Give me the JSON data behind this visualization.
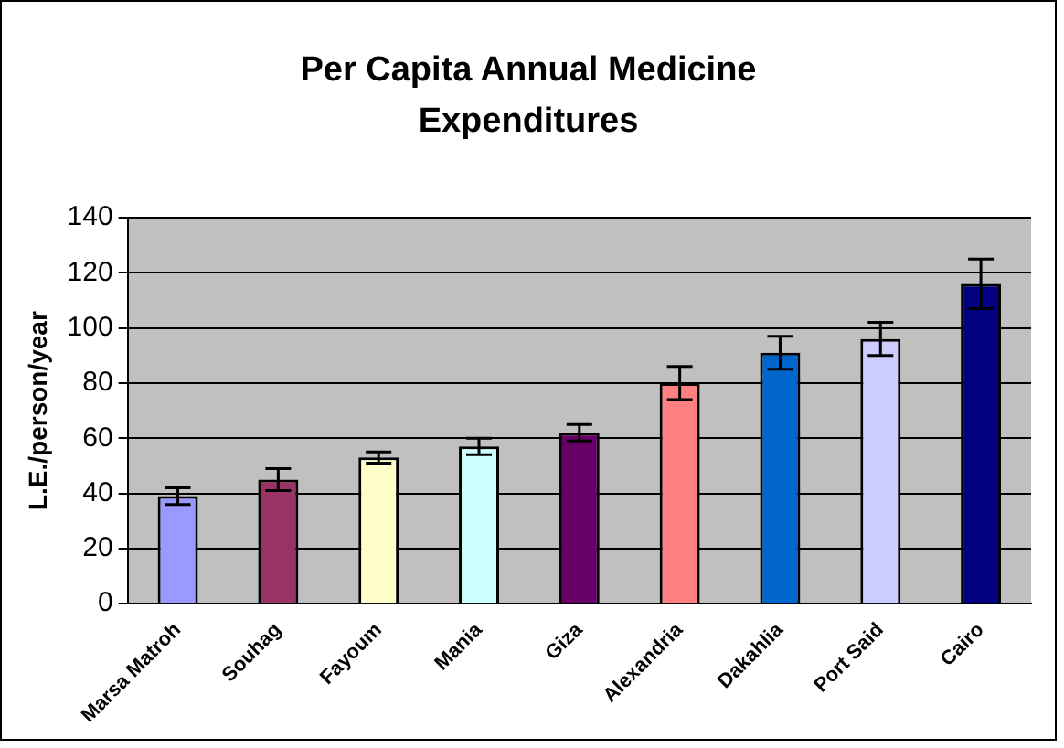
{
  "chart_data": {
    "type": "bar",
    "title": "Per Capita Annual Medicine Expenditures",
    "ylabel": "L.E./person/year",
    "categories": [
      "Marsa Matroh",
      "Souhag",
      "Fayoum",
      "Mania",
      "Giza",
      "Alexandria",
      "Dakahlia",
      "Port Said",
      "Cairo"
    ],
    "values": [
      39,
      45,
      53,
      57,
      62,
      80,
      91,
      96,
      116
    ],
    "colors": [
      "#9999ff",
      "#993366",
      "#ffffcc",
      "#ccffff",
      "#660066",
      "#ff8080",
      "#0066cc",
      "#ccccff",
      "#000080"
    ],
    "errors": [
      3,
      4,
      2,
      3,
      3,
      6,
      6,
      6,
      9
    ],
    "ylim": [
      0,
      140
    ],
    "yticks": [
      0,
      20,
      40,
      60,
      80,
      100,
      120,
      140
    ],
    "grid": "y",
    "legend": false
  }
}
